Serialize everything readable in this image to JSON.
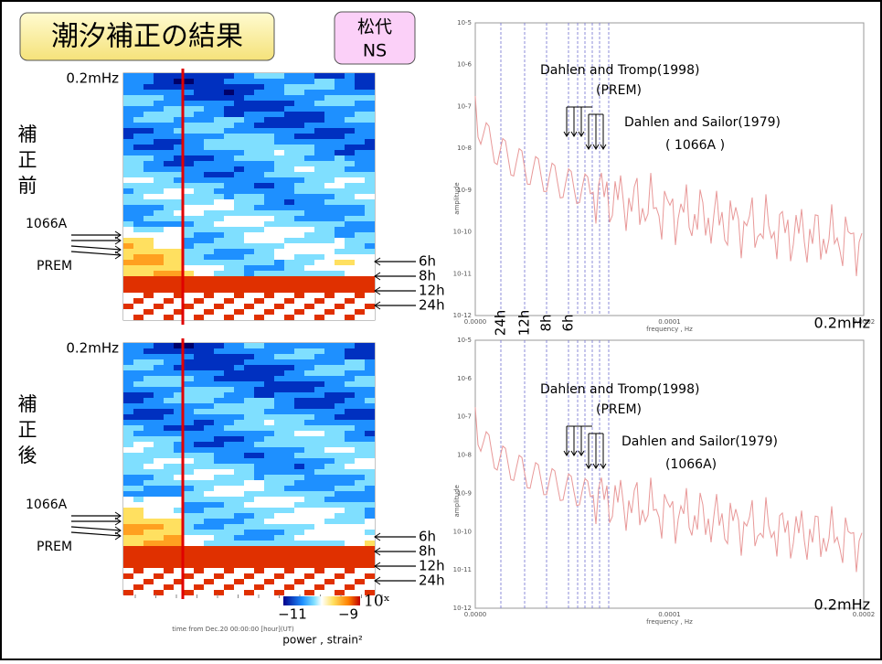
{
  "title": "潮汐補正の結果",
  "badge": [
    "松代",
    "NS"
  ],
  "panels": [
    {
      "label": [
        "補",
        "正",
        "前"
      ],
      "top_freq": "0.2mHz",
      "models_left": [
        "1066A",
        "PREM"
      ],
      "periods": [
        "6h",
        "8h",
        "12h",
        "24h"
      ],
      "spectrum": {
        "model1": "Dahlen and Tromp(1998)",
        "model1_sub": "(PREM)",
        "model2": "Dahlen and Sailor(1979)",
        "model2_sub": "( 1066A )",
        "ylabel": "amplitude",
        "xlabel": "frequency , Hz",
        "xticks": [
          "0.0000",
          "0.0001",
          "0.0002"
        ],
        "yticks": [
          "10-5",
          "10-6",
          "10-7",
          "10-8",
          "10-9",
          "10-10",
          "10-11",
          "10-12"
        ],
        "right_label": "0.2mHz"
      }
    },
    {
      "label": [
        "補",
        "正",
        "後"
      ],
      "top_freq": "0.2mHz",
      "models_left": [
        "1066A",
        "PREM"
      ],
      "periods": [
        "6h",
        "8h",
        "12h",
        "24h"
      ],
      "spectrum": {
        "model1": "Dahlen and Tromp(1998)",
        "model1_sub": "(PREM)",
        "model2": "Dahlen and Sailor(1979)",
        "model2_sub": "(1066A)",
        "ylabel": "amplitude",
        "xlabel": "frequency , Hz",
        "xticks": [
          "0.0000",
          "0.0001",
          "0.0002"
        ],
        "yticks": [
          "10-5",
          "10-6",
          "10-7",
          "10-8",
          "10-9",
          "10-10",
          "10-11",
          "10-12"
        ],
        "right_label": "0.2mHz"
      }
    }
  ],
  "period_axis": [
    "24h",
    "12h",
    "8h",
    "6h"
  ],
  "time_axis": "time from Dec.20 00:00:00 [hour](UT)",
  "colorbar": {
    "min": "−11",
    "max": "−9",
    "unit": "10ˣ",
    "label": "power , strain²"
  }
}
